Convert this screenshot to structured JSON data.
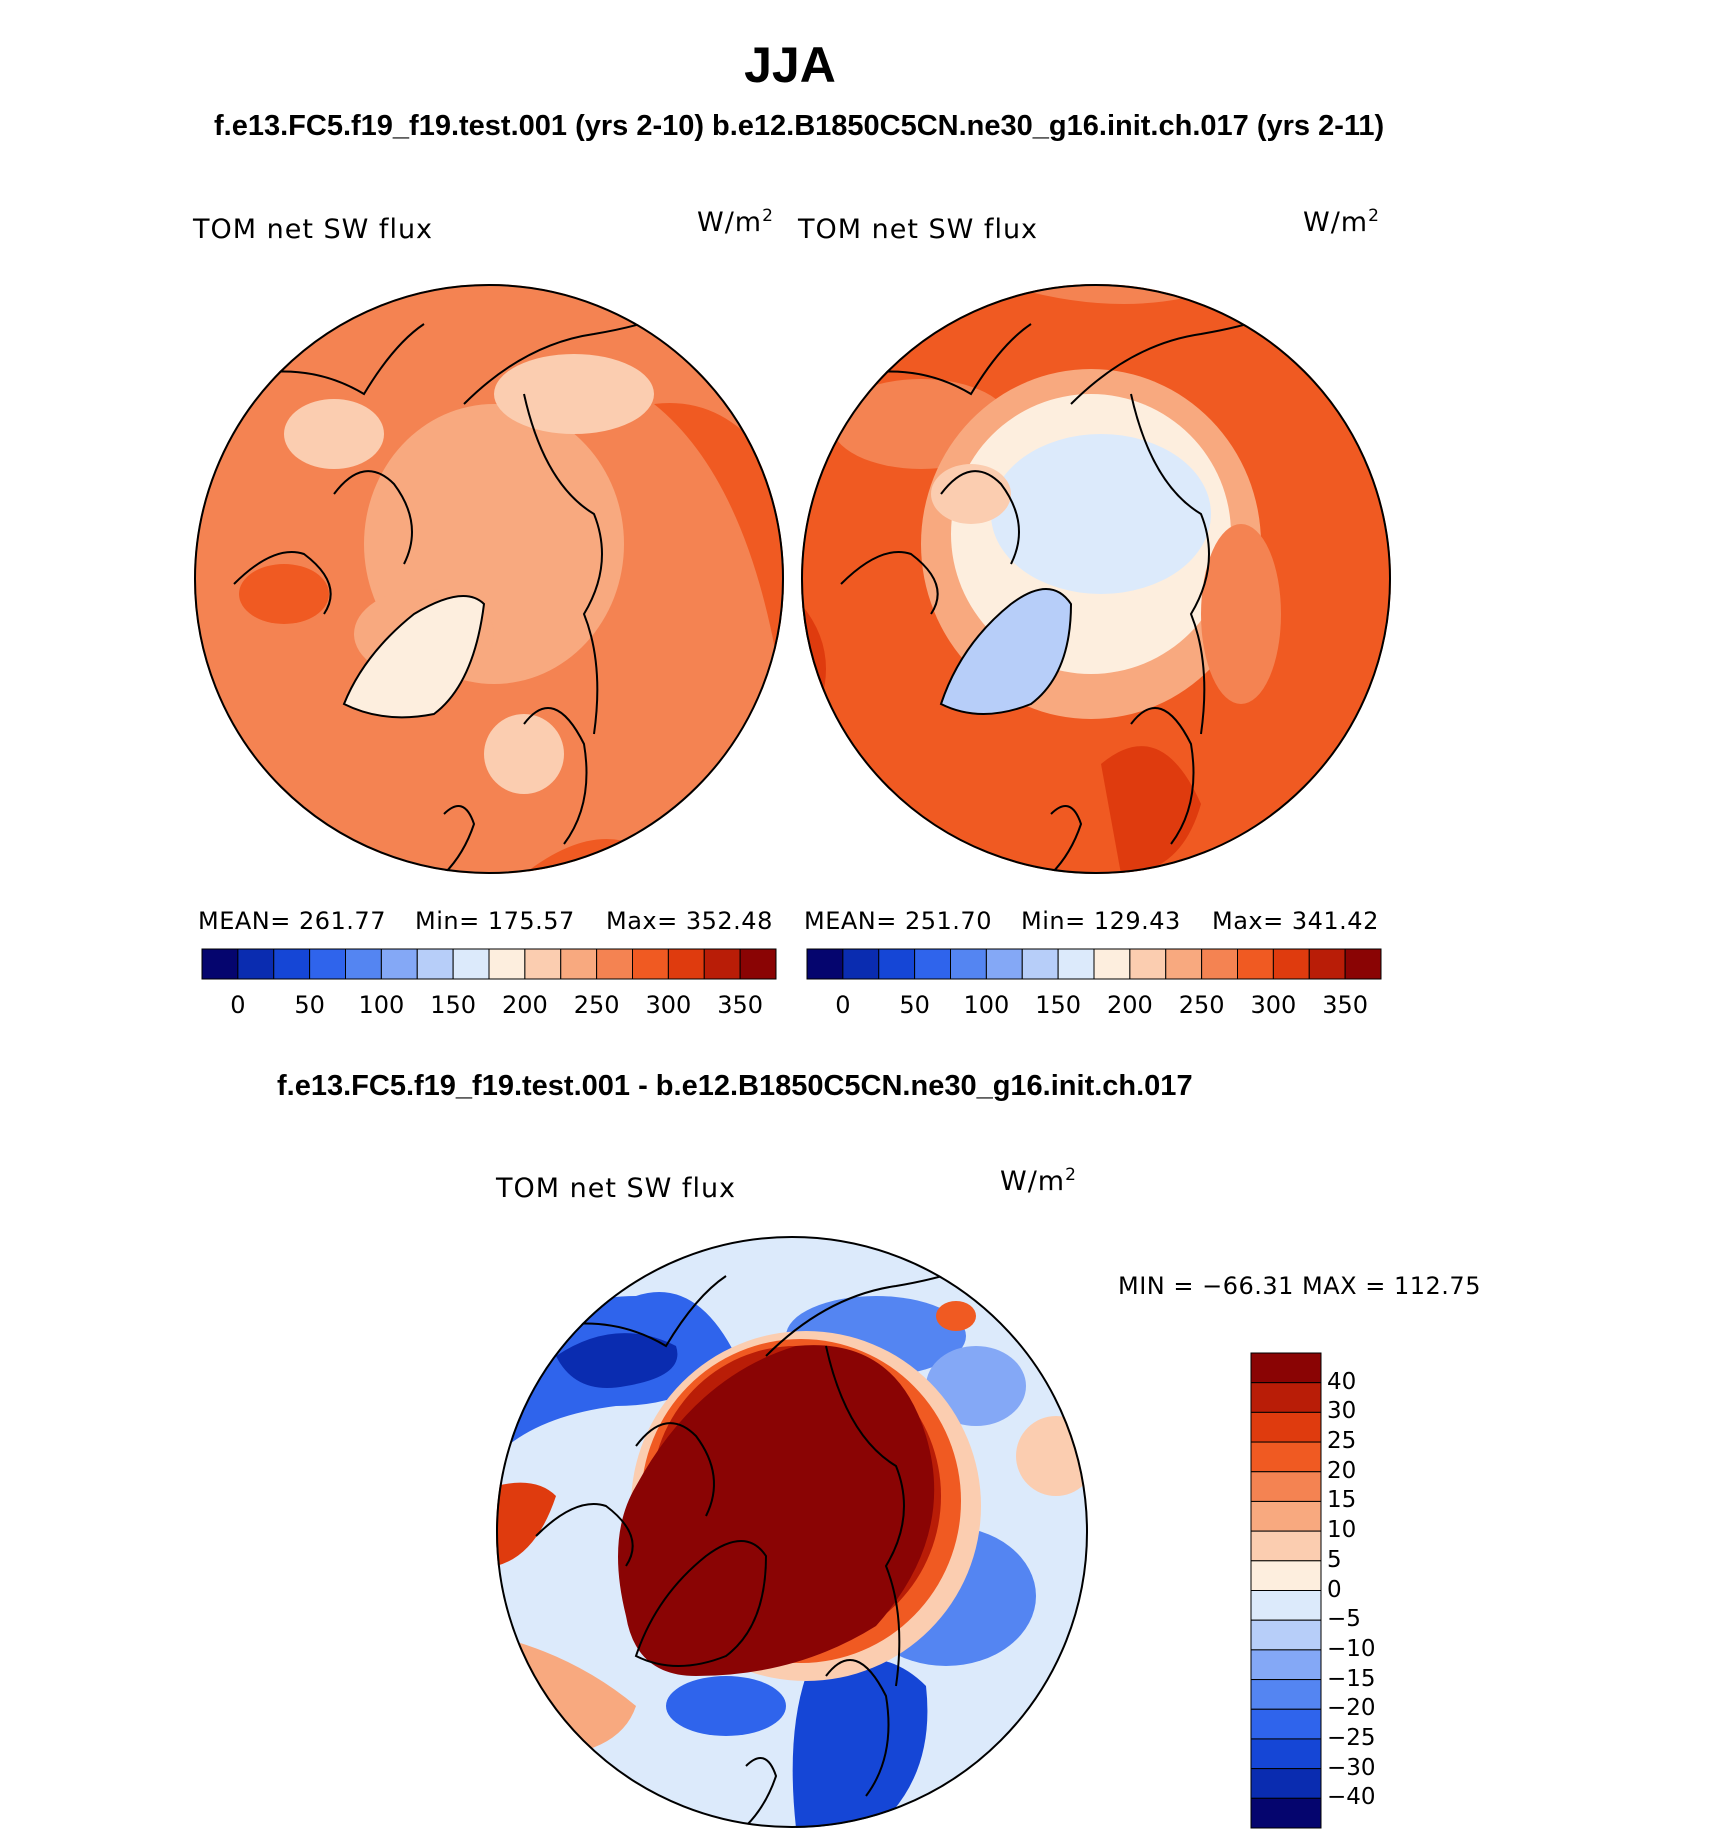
{
  "season_title": "JJA",
  "case_labels": {
    "left": "f.e13.FC5.f19_f19.test.001 (yrs 2-10)",
    "right": "b.e12.B1850C5CN.ne30_g16.init.ch.017 (yrs 2-11)"
  },
  "diff_title": "f.e13.FC5.f19_f19.test.001 - b.e12.B1850C5CN.ne30_g16.init.ch.017",
  "variable": "TOM net SW flux",
  "units": "W/m",
  "units_exp": "2",
  "panels": [
    {
      "mean_label": "MEAN= 261.77",
      "min_label": "Min= 175.57",
      "max_label": "Max= 352.48"
    },
    {
      "mean_label": "MEAN= 251.70",
      "min_label": "Min= 129.43",
      "max_label": "Max= 341.42"
    }
  ],
  "diff_stats": "MIN = −66.31  MAX = 112.75",
  "colors": {
    "abs_scale": [
      "#05056e",
      "#0a2cb0",
      "#1546d6",
      "#2f64ec",
      "#5485f2",
      "#84a8f6",
      "#b7cef9",
      "#dceafb",
      "#fdeede",
      "#fbcdb0",
      "#f8a97f",
      "#f48352",
      "#f05a22",
      "#df3b0e",
      "#b91d07",
      "#8a0404"
    ],
    "diff_scale": [
      "#05056e",
      "#0a2cb0",
      "#1546d6",
      "#2f64ec",
      "#5485f2",
      "#84a8f6",
      "#b7cef9",
      "#dceafb",
      "#fdeede",
      "#fbcdb0",
      "#f8a97f",
      "#f48352",
      "#f05a22",
      "#df3b0e",
      "#b91d07",
      "#8a0404"
    ]
  },
  "chart_data": [
    {
      "type": "heatmap",
      "projection": "north-polar-stereographic",
      "title": "TOM net SW flux",
      "case": "f.e13.FC5.f19_f19.test.001 (yrs 2-10)",
      "units": "W/m2",
      "mean": 261.77,
      "min": 175.57,
      "max": 352.48,
      "colorbar_ticks": [
        "0",
        "50",
        "100",
        "150",
        "200",
        "250",
        "300",
        "350"
      ]
    },
    {
      "type": "heatmap",
      "projection": "north-polar-stereographic",
      "title": "TOM net SW flux",
      "case": "b.e12.B1850C5CN.ne30_g16.init.ch.017 (yrs 2-11)",
      "units": "W/m2",
      "mean": 251.7,
      "min": 129.43,
      "max": 341.42,
      "colorbar_ticks": [
        "0",
        "50",
        "100",
        "150",
        "200",
        "250",
        "300",
        "350"
      ]
    },
    {
      "type": "heatmap",
      "projection": "north-polar-stereographic",
      "title": "TOM net SW flux",
      "case": "f.e13.FC5.f19_f19.test.001 - b.e12.B1850C5CN.ne30_g16.init.ch.017",
      "units": "W/m2",
      "min": -66.31,
      "max": 112.75,
      "colorbar_ticks": [
        "40",
        "30",
        "25",
        "20",
        "15",
        "10",
        "5",
        "0",
        "−5",
        "−10",
        "−15",
        "−20",
        "−25",
        "−30",
        "−40"
      ]
    }
  ]
}
